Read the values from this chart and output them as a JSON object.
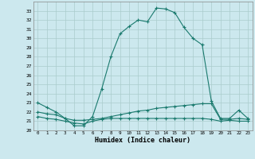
{
  "xlabel": "Humidex (Indice chaleur)",
  "ylabel": "",
  "background_color": "#cce8ee",
  "grid_color": "#aacccc",
  "line_color": "#1a7a6e",
  "xlim": [
    -0.5,
    23.5
  ],
  "ylim": [
    20,
    34
  ],
  "yticks": [
    20,
    21,
    22,
    23,
    24,
    25,
    26,
    27,
    28,
    29,
    30,
    31,
    32,
    33
  ],
  "xticks": [
    0,
    1,
    2,
    3,
    4,
    5,
    6,
    7,
    8,
    9,
    10,
    11,
    12,
    13,
    14,
    15,
    16,
    17,
    18,
    19,
    20,
    21,
    22,
    23
  ],
  "line1_x": [
    0,
    1,
    2,
    3,
    4,
    5,
    6,
    7,
    8,
    9,
    10,
    11,
    12,
    13,
    14,
    15,
    16,
    17,
    18,
    19,
    20,
    21,
    22,
    23
  ],
  "line1_y": [
    23,
    22.5,
    22,
    21.3,
    20.5,
    20.5,
    21.5,
    24.5,
    28,
    30.5,
    31.3,
    32.0,
    31.8,
    33.3,
    33.2,
    32.8,
    31.2,
    30.0,
    29.3,
    23.2,
    21.3,
    21.3,
    22.2,
    21.3
  ],
  "line2_x": [
    0,
    1,
    2,
    3,
    4,
    5,
    6,
    7,
    8,
    9,
    10,
    11,
    12,
    13,
    14,
    15,
    16,
    17,
    18,
    19,
    20,
    21,
    22,
    23
  ],
  "line2_y": [
    22,
    21.8,
    21.7,
    21.3,
    21.1,
    21.1,
    21.2,
    21.3,
    21.5,
    21.7,
    21.9,
    22.1,
    22.2,
    22.4,
    22.5,
    22.6,
    22.7,
    22.8,
    22.9,
    22.9,
    21.2,
    21.2,
    21.3,
    21.2
  ],
  "line3_x": [
    0,
    1,
    2,
    3,
    4,
    5,
    6,
    7,
    8,
    9,
    10,
    11,
    12,
    13,
    14,
    15,
    16,
    17,
    18,
    19,
    20,
    21,
    22,
    23
  ],
  "line3_y": [
    21.5,
    21.3,
    21.2,
    21.0,
    20.8,
    20.7,
    21.0,
    21.2,
    21.3,
    21.3,
    21.3,
    21.3,
    21.3,
    21.3,
    21.3,
    21.3,
    21.3,
    21.3,
    21.3,
    21.2,
    21.0,
    21.1,
    21.0,
    21.0
  ]
}
